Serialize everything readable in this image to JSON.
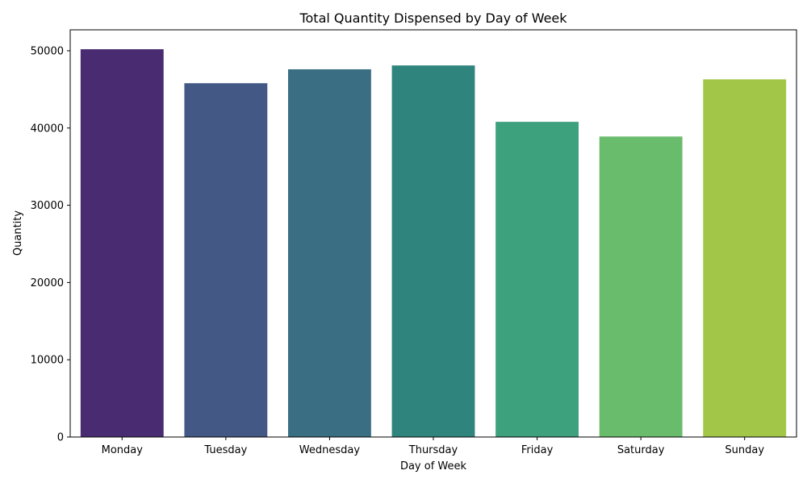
{
  "chart_data": {
    "type": "bar",
    "title": "Total Quantity Dispensed by Day of Week",
    "xlabel": "Day of Week",
    "ylabel": "Quantity",
    "categories": [
      "Monday",
      "Tuesday",
      "Wednesday",
      "Thursday",
      "Friday",
      "Saturday",
      "Sunday"
    ],
    "values": [
      50200,
      45800,
      47600,
      48100,
      40800,
      38900,
      46300
    ],
    "colors": [
      "#482b70",
      "#435885",
      "#3a6e83",
      "#2f857e",
      "#3da17d",
      "#6abc6d",
      "#a2c748"
    ],
    "ylim": [
      0,
      52710
    ],
    "yticks": [
      0,
      10000,
      20000,
      30000,
      40000,
      50000
    ],
    "ytick_labels": [
      "0",
      "10000",
      "20000",
      "30000",
      "40000",
      "50000"
    ],
    "grid": false,
    "legend": false
  }
}
